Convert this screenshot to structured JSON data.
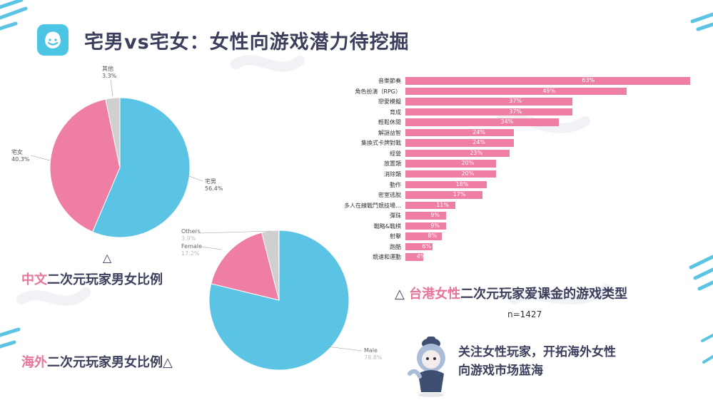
{
  "title": "宅男vs宅女：女性向游戏潜力待挖掘",
  "brand_color": "#4cc4e4",
  "accent_pink": "#ee7ea4",
  "colors": {
    "male": "#5bc3e3",
    "female": "#ee7ea4",
    "other": "#cfcfcf"
  },
  "captions": {
    "cn_triangle": "△",
    "cn_highlight": "中文",
    "cn_rest": "二次元玩家男女比例",
    "overseas_highlight": "海外",
    "overseas_rest": "二次元玩家男女比例△",
    "hk_triangle": "△",
    "hk_highlight": "台港女性",
    "hk_rest": "二次元玩家爱课金的游戏类型"
  },
  "sample_size": "n=1427",
  "promo": {
    "line1": "关注女性玩家，开拓海外女性",
    "line2": "向游戏市场蓝海"
  },
  "chart_data": [
    {
      "type": "pie",
      "slices": [
        {
          "label": "宅男",
          "value": 56.4,
          "display": "56.4%"
        },
        {
          "label": "宅女",
          "value": 40.3,
          "display": "40.3%"
        },
        {
          "label": "其他",
          "value": 3.3,
          "display": "3.3%"
        }
      ]
    },
    {
      "type": "pie",
      "slices": [
        {
          "label": "Male",
          "value": 78.8,
          "display": "78.8%"
        },
        {
          "label": "Female",
          "value": 17.2,
          "display": "17.2%"
        },
        {
          "label": "Others",
          "value": 3.9,
          "display": "3.9%"
        }
      ]
    },
    {
      "type": "bar",
      "orientation": "horizontal",
      "xlim": [
        0,
        66
      ],
      "categories": [
        "音樂節奏",
        "角色扮演（RPG）",
        "戀愛模擬",
        "育成",
        "輕鬆休閒",
        "解謎益智",
        "集換式卡牌對戰",
        "經營",
        "放置類",
        "消除類",
        "動作",
        "密室逃脫",
        "多人在線戰鬥競技場…",
        "彈珠",
        "戰略&戰棋",
        "射擊",
        "跑酷",
        "競速和運動"
      ],
      "values": [
        63,
        49,
        37,
        37,
        34,
        24,
        24,
        23,
        20,
        20,
        18,
        17,
        11,
        9,
        9,
        8,
        6,
        4
      ],
      "value_labels": [
        "63%",
        "49%",
        "37%",
        "37%",
        "34%",
        "24%",
        "24%",
        "23%",
        "20%",
        "20%",
        "18%",
        "17%",
        "11%",
        "9%",
        "9%",
        "8%",
        "6%",
        "4%"
      ]
    }
  ]
}
